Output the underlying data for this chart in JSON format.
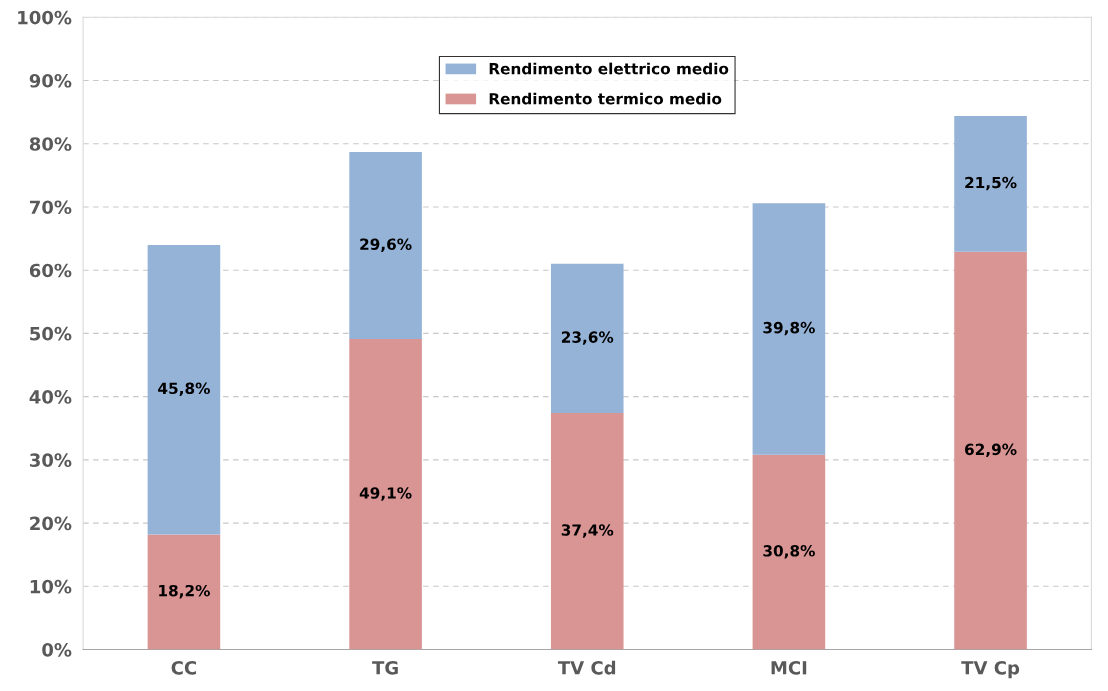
{
  "chart_data": {
    "type": "bar",
    "stacked": true,
    "categories": [
      "CC",
      "TG",
      "TV Cd",
      "MCI",
      "TV Cp"
    ],
    "series": [
      {
        "name": "Rendimento termico medio",
        "color": "#d99594",
        "values": [
          18.2,
          49.1,
          37.4,
          30.8,
          62.9
        ],
        "value_labels": [
          "18,2%",
          "49,1%",
          "37,4%",
          "30,8%",
          "62,9%"
        ]
      },
      {
        "name": "Rendimento elettrico medio",
        "color": "#95b3d7",
        "values": [
          45.8,
          29.6,
          23.6,
          39.8,
          21.5
        ],
        "value_labels": [
          "45,8%",
          "29,6%",
          "23,6%",
          "39,8%",
          "21,5%"
        ]
      }
    ],
    "ylim": [
      0,
      100
    ],
    "yticks": [
      {
        "value": 0,
        "label": "0%"
      },
      {
        "value": 10,
        "label": "10%"
      },
      {
        "value": 20,
        "label": "20%"
      },
      {
        "value": 30,
        "label": "30%"
      },
      {
        "value": 40,
        "label": "40%"
      },
      {
        "value": 50,
        "label": "50%"
      },
      {
        "value": 60,
        "label": "60%"
      },
      {
        "value": 70,
        "label": "70%"
      },
      {
        "value": 80,
        "label": "80%"
      },
      {
        "value": 90,
        "label": "90%"
      },
      {
        "value": 100,
        "label": "100%"
      }
    ],
    "grid": "y",
    "legend": "top"
  }
}
